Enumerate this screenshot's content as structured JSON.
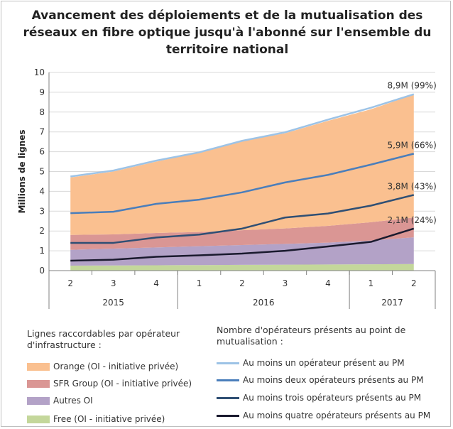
{
  "title": "Avancement des déploiements et de la mutualisation des réseaux en fibre optique jusqu'à l'abonné sur l'ensemble du territoire national",
  "chart_data": {
    "type": "area",
    "title": "Avancement des déploiements et de la mutualisation des réseaux en fibre optique jusqu'à l'abonné sur l'ensemble du territoire national",
    "ylabel": "Millions de lignes",
    "ylim": [
      0,
      10
    ],
    "yticks": [
      "0",
      "1",
      "2",
      "3",
      "4",
      "5",
      "6",
      "7",
      "8",
      "9",
      "10"
    ],
    "categories": [
      "2",
      "3",
      "4",
      "1",
      "2",
      "3",
      "4",
      "1",
      "2"
    ],
    "year_groups": [
      {
        "label": "2015",
        "count": 3
      },
      {
        "label": "2016",
        "count": 4
      },
      {
        "label": "2017",
        "count": 2
      }
    ],
    "grid": true,
    "stacked_series": [
      {
        "name": "Free (OI - initiative privée)",
        "color": "#c4d79b",
        "values": [
          0.25,
          0.26,
          0.27,
          0.28,
          0.29,
          0.3,
          0.31,
          0.32,
          0.33
        ]
      },
      {
        "name": "Autres OI",
        "color": "#b3a2c7",
        "values": [
          0.8,
          0.85,
          0.9,
          0.95,
          1.0,
          1.05,
          1.1,
          1.2,
          1.35
        ]
      },
      {
        "name": "SFR Group (OI - initiative privée)",
        "color": "#da9694",
        "values": [
          0.75,
          0.72,
          0.73,
          0.72,
          0.75,
          0.78,
          0.85,
          0.92,
          1.0
        ]
      },
      {
        "name": "Orange (OI - initiative privée)",
        "color": "#fac090",
        "values": [
          2.9,
          3.17,
          3.6,
          4.0,
          4.5,
          4.8,
          5.3,
          5.7,
          6.2
        ]
      }
    ],
    "line_series": [
      {
        "name": "Au moins un opérateur présent au PM",
        "color": "#9dc3e6",
        "values": [
          4.75,
          5.05,
          5.55,
          5.97,
          6.55,
          6.98,
          7.62,
          8.22,
          8.9
        ]
      },
      {
        "name": "Au moins deux opérateurs présents au PM",
        "color": "#4a7ebb",
        "values": [
          2.9,
          2.97,
          3.37,
          3.58,
          3.95,
          4.45,
          4.83,
          5.35,
          5.9
        ]
      },
      {
        "name": "Au moins trois opérateurs présents au PM",
        "color": "#2f4f74",
        "values": [
          1.4,
          1.4,
          1.67,
          1.82,
          2.12,
          2.68,
          2.88,
          3.28,
          3.82
        ]
      },
      {
        "name": "Au moins quatre opérateurs présents au PM",
        "color": "#1a1a2e",
        "values": [
          0.5,
          0.55,
          0.7,
          0.77,
          0.86,
          1.0,
          1.22,
          1.45,
          2.12
        ]
      }
    ],
    "annotations": [
      {
        "text": "8,9M (99%)",
        "series": 0
      },
      {
        "text": "5,9M (66%)",
        "series": 1
      },
      {
        "text": "3,8M (43%)",
        "series": 2
      },
      {
        "text": "2,1M (24%)",
        "series": 3
      }
    ]
  },
  "legend": {
    "areas_title": "Lignes raccordables par opérateur d'infrastructure :",
    "lines_title": "Nombre d'opérateurs présents au point de mutualisation :"
  }
}
